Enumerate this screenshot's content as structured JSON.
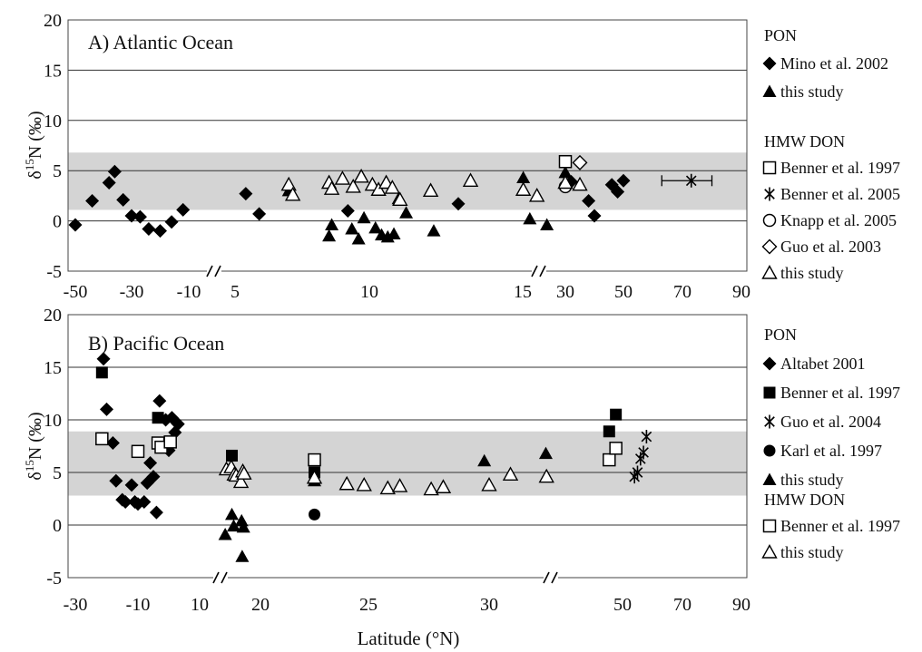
{
  "chart_data": [
    {
      "type": "scatter",
      "title": "A) Atlantic Ocean",
      "ylabel_base": "δ",
      "ylabel_sup": "15",
      "ylabel_rest": "N (‰)",
      "ylim": [
        -5,
        20
      ],
      "yticks": [
        -5,
        0,
        5,
        10,
        15,
        20
      ],
      "xticks": [
        "-50",
        "-30",
        "-10",
        "5",
        "10",
        "15",
        "30",
        "50",
        "70",
        "90"
      ],
      "axis_breaks": [
        "between -10 and 5",
        "between 15 and 30"
      ],
      "grid": "horizontal",
      "shaded_band": [
        1.1,
        6.8
      ],
      "shade_color": "#d4d4d4",
      "legend": {
        "groups": [
          {
            "title": "PON",
            "entries": [
              {
                "marker": "diamond-filled",
                "label": "Mino et al. 2002"
              },
              {
                "marker": "triangle-filled",
                "label": "this study"
              }
            ]
          },
          {
            "title": "HMW DON",
            "entries": [
              {
                "marker": "square-open",
                "label": "Benner et al. 1997"
              },
              {
                "marker": "star",
                "label": "Benner et al. 2005"
              },
              {
                "marker": "circle-open",
                "label": "Knapp et al. 2005"
              },
              {
                "marker": "diamond-open",
                "label": "Guo et al. 2003"
              },
              {
                "marker": "triangle-open",
                "label": "this study"
              }
            ]
          }
        ]
      },
      "series": [
        {
          "name": "PON Mino et al. 2002",
          "marker": "diamond-filled",
          "points": [
            [
              -50,
              -0.4
            ],
            [
              -44,
              2.0
            ],
            [
              -38,
              3.8
            ],
            [
              -36,
              4.9
            ],
            [
              -33,
              2.1
            ],
            [
              -30,
              0.5
            ],
            [
              -27,
              0.4
            ],
            [
              -24,
              -0.8
            ],
            [
              -20,
              -1.0
            ],
            [
              -16,
              -0.1
            ],
            [
              -12,
              1.1
            ],
            [
              5.4,
              2.7
            ],
            [
              5.9,
              0.7
            ],
            [
              9.2,
              1.0
            ],
            [
              12.9,
              1.7
            ],
            [
              32,
              3.9
            ],
            [
              38,
              2.0
            ],
            [
              40,
              0.5
            ],
            [
              46,
              3.6
            ],
            [
              48,
              2.9
            ],
            [
              50,
              4.0
            ]
          ]
        },
        {
          "name": "PON this study",
          "marker": "triangle-filled",
          "points": [
            [
              7.0,
              3.0
            ],
            [
              8.5,
              -1.5
            ],
            [
              8.6,
              -0.4
            ],
            [
              9.35,
              -0.8
            ],
            [
              9.6,
              -1.8
            ],
            [
              9.8,
              0.3
            ],
            [
              10.2,
              -0.7
            ],
            [
              10.4,
              -1.4
            ],
            [
              10.6,
              -1.6
            ],
            [
              10.8,
              -1.3
            ],
            [
              10.95,
              2.2
            ],
            [
              11.2,
              0.8
            ],
            [
              12.1,
              -1.0
            ],
            [
              15.2,
              4.3
            ],
            [
              17.5,
              0.2
            ],
            [
              23.5,
              -0.4
            ],
            [
              30,
              4.8
            ]
          ]
        },
        {
          "name": "HMW DON Benner et al. 1997",
          "marker": "square-open",
          "points": [
            [
              30,
              5.9
            ]
          ]
        },
        {
          "name": "HMW DON Benner et al. 2005",
          "marker": "star",
          "points": [
            [
              73,
              4.0
            ]
          ],
          "xerr": [
            63,
            80
          ]
        },
        {
          "name": "HMW DON Knapp et al. 2005",
          "marker": "circle-open",
          "points": [
            [
              30,
              3.4
            ]
          ]
        },
        {
          "name": "HMW DON Guo et al. 2003",
          "marker": "diamond-open",
          "points": [
            [
              35,
              5.8
            ]
          ]
        },
        {
          "name": "HMW DON this study",
          "marker": "triangle-open",
          "points": [
            [
              7.0,
              3.6
            ],
            [
              7.15,
              2.6
            ],
            [
              8.5,
              3.8
            ],
            [
              8.6,
              3.2
            ],
            [
              9.0,
              4.2
            ],
            [
              9.4,
              3.4
            ],
            [
              9.7,
              4.4
            ],
            [
              10.1,
              3.6
            ],
            [
              10.3,
              3.1
            ],
            [
              10.55,
              3.8
            ],
            [
              10.75,
              3.3
            ],
            [
              11.0,
              2.1
            ],
            [
              12.0,
              3.0
            ],
            [
              13.3,
              4.0
            ],
            [
              15.2,
              3.1
            ],
            [
              20,
              2.5
            ],
            [
              30,
              3.8
            ],
            [
              35,
              3.6
            ]
          ]
        }
      ]
    },
    {
      "type": "scatter",
      "title": "B) Pacific Ocean",
      "xlabel": "Latitude (°N)",
      "ylabel_base": "δ",
      "ylabel_sup": "15",
      "ylabel_rest": "N (‰)",
      "ylim": [
        -5,
        20
      ],
      "yticks": [
        -5,
        0,
        5,
        10,
        15,
        20
      ],
      "xticks": [
        "-30",
        "-10",
        "10",
        "20",
        "25",
        "30",
        "50",
        "70",
        "90"
      ],
      "axis_breaks": [
        "between 10 and 20",
        "between 30 and 50"
      ],
      "grid": "horizontal",
      "shaded_band": [
        2.8,
        8.9
      ],
      "shade_color": "#d4d4d4",
      "legend": {
        "groups": [
          {
            "title": "PON",
            "entries": [
              {
                "marker": "diamond-filled",
                "label": "Altabet 2001"
              },
              {
                "marker": "square-filled",
                "label": "Benner et al. 1997"
              },
              {
                "marker": "star",
                "label": "Guo et al. 2004"
              },
              {
                "marker": "circle-filled",
                "label": "Karl et al. 1997"
              },
              {
                "marker": "triangle-filled",
                "label": "this study"
              }
            ]
          },
          {
            "title": "HMW DON",
            "entries": [
              {
                "marker": "square-open",
                "label": "Benner et al. 1997"
              },
              {
                "marker": "triangle-open",
                "label": "this study"
              }
            ]
          }
        ]
      },
      "series": [
        {
          "name": "PON Altabet 2001",
          "marker": "diamond-filled",
          "points": [
            [
              -21,
              15.8
            ],
            [
              -20,
              11.0
            ],
            [
              -18,
              7.8
            ],
            [
              -17,
              4.2
            ],
            [
              -15,
              2.4
            ],
            [
              -14,
              2.2
            ],
            [
              -12,
              3.8
            ],
            [
              -11,
              2.2
            ],
            [
              -10,
              2.0
            ],
            [
              -8,
              2.2
            ],
            [
              -7,
              4.0
            ],
            [
              -6,
              5.9
            ],
            [
              -5,
              4.6
            ],
            [
              -4,
              1.2
            ],
            [
              -3,
              11.8
            ],
            [
              -2,
              7.6
            ],
            [
              -1,
              10.0
            ],
            [
              0,
              7.1
            ],
            [
              1,
              10.2
            ],
            [
              2,
              8.8
            ],
            [
              3,
              9.6
            ]
          ]
        },
        {
          "name": "PON Benner et al. 1997",
          "marker": "square-filled",
          "points": [
            [
              -21.5,
              14.5
            ],
            [
              -3.5,
              10.2
            ],
            [
              15.3,
              6.6
            ],
            [
              22.5,
              5.0
            ],
            [
              48,
              8.9
            ],
            [
              49,
              10.5
            ]
          ]
        },
        {
          "name": "PON Guo et al. 2004",
          "marker": "star",
          "points": [
            [
              54,
              4.6
            ],
            [
              55,
              5.0
            ],
            [
              56,
              6.3
            ],
            [
              57,
              6.9
            ],
            [
              58,
              8.4
            ]
          ]
        },
        {
          "name": "PON Karl et al. 1997",
          "marker": "circle-filled",
          "points": [
            [
              22.5,
              1.0
            ]
          ]
        },
        {
          "name": "PON this study",
          "marker": "triangle-filled",
          "points": [
            [
              14.2,
              -0.9
            ],
            [
              15.3,
              1.0
            ],
            [
              15.6,
              -0.1
            ],
            [
              16.9,
              0.4
            ],
            [
              17.0,
              -3.0
            ],
            [
              17.2,
              -0.2
            ],
            [
              22.5,
              4.2
            ],
            [
              29.8,
              6.1
            ],
            [
              38.5,
              6.8
            ]
          ]
        },
        {
          "name": "HMW DON Benner et al. 1997",
          "marker": "square-open",
          "points": [
            [
              -21.5,
              8.2
            ],
            [
              -10,
              7.0
            ],
            [
              -3.5,
              7.8
            ],
            [
              -2.5,
              7.4
            ],
            [
              0.5,
              7.9
            ],
            [
              22.5,
              6.2
            ],
            [
              48,
              6.2
            ],
            [
              49,
              7.3
            ]
          ]
        },
        {
          "name": "HMW DON this study",
          "marker": "triangle-open",
          "points": [
            [
              14.4,
              5.3
            ],
            [
              15.2,
              5.5
            ],
            [
              15.7,
              4.8
            ],
            [
              16.0,
              4.7
            ],
            [
              16.8,
              4.1
            ],
            [
              17.1,
              5.1
            ],
            [
              17.3,
              4.9
            ],
            [
              22.5,
              4.5
            ],
            [
              24.0,
              3.9
            ],
            [
              24.8,
              3.8
            ],
            [
              25.8,
              3.5
            ],
            [
              26.3,
              3.7
            ],
            [
              27.6,
              3.4
            ],
            [
              28.1,
              3.6
            ],
            [
              30,
              3.8
            ],
            [
              33.2,
              4.8
            ],
            [
              38.6,
              4.6
            ]
          ]
        }
      ]
    }
  ]
}
